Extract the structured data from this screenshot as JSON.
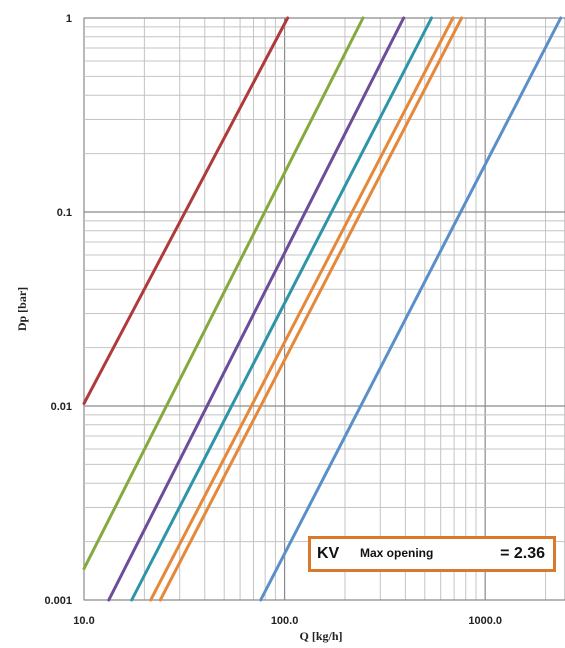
{
  "chart_data": {
    "type": "line",
    "xscale": "log",
    "yscale": "log",
    "xlim": [
      10,
      2500
    ],
    "ylim": [
      0.001,
      1
    ],
    "xticks": [
      "10.0",
      "100.0",
      "1000.0"
    ],
    "yticks": [
      "0.001",
      "0.01",
      "0.1",
      "1"
    ],
    "xlabel": "Q [kg/h]",
    "ylabel": "Dp [bar]",
    "grid": true,
    "series": [
      {
        "color": "#b03a3a",
        "x": [
          10,
          103.5
        ],
        "y": [
          0.0103,
          1
        ]
      },
      {
        "color": "#86a93f",
        "x": [
          10,
          246
        ],
        "y": [
          0.00145,
          1
        ]
      },
      {
        "color": "#6b4d99",
        "x": [
          13.3,
          392
        ],
        "y": [
          0.001,
          1
        ]
      },
      {
        "color": "#2e95a8",
        "x": [
          17.3,
          540
        ],
        "y": [
          0.001,
          1
        ]
      },
      {
        "color": "#e6883a",
        "x": [
          21.5,
          690
        ],
        "y": [
          0.001,
          1
        ]
      },
      {
        "color": "#e6883a",
        "x": [
          24.0,
          763
        ],
        "y": [
          0.001,
          1
        ]
      },
      {
        "color": "#5b8fc9",
        "x": [
          76.0,
          2380
        ],
        "y": [
          0.001,
          1
        ]
      }
    ]
  },
  "kv_box": {
    "kv": "KV",
    "subscript": "Max opening",
    "value": "= 2.36",
    "border_color": "#d9792b"
  }
}
